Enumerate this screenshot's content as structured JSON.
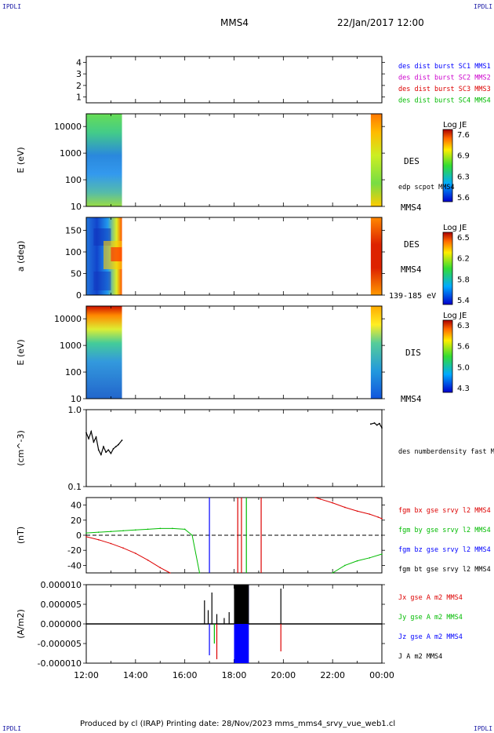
{
  "header": {
    "corner_label": "IPDLI",
    "spacecraft": "MMS4",
    "date": "22/Jan/2017 12:00"
  },
  "footer": {
    "text": "Produced by cl (IRAP)   Printing date: 28/Nov/2023   mms_mms4_srvy_vue_web1.cl"
  },
  "colors": {
    "black": "#000000",
    "blue": "#0000ff",
    "magenta": "#cc00cc",
    "red": "#dd0000",
    "green": "#00bb00"
  },
  "chart_data": [
    {
      "type": "line",
      "panel": "burst",
      "yticks": [
        "1",
        "2",
        "3",
        "4"
      ],
      "ylim": [
        0.5,
        4.5
      ],
      "legend": [
        {
          "text": "des dist burst SC1 MMS1",
          "color": "#0000ff"
        },
        {
          "text": "des dist burst SC2 MMS2",
          "color": "#cc00cc"
        },
        {
          "text": "des dist burst SC3 MMS3",
          "color": "#dd0000"
        },
        {
          "text": "des dist burst SC4 MMS4",
          "color": "#00bb00"
        }
      ]
    },
    {
      "type": "heatmap",
      "panel": "des-energy",
      "ylabel": "E (eV)",
      "yscale": "log",
      "ylim": [
        10,
        30000
      ],
      "yticks": [
        "10",
        "100",
        "1000",
        "10000"
      ],
      "data_intervals_hours": [
        [
          0.0,
          1.45
        ],
        [
          11.55,
          12.0
        ]
      ],
      "right_labels": [
        "DES",
        "edp scpot MMS4",
        "MMS4"
      ],
      "colorbar": {
        "title": "Log JE",
        "ticks": [
          "7.6",
          "6.9",
          "6.3",
          "5.6"
        ],
        "range": [
          5.6,
          7.6
        ]
      }
    },
    {
      "type": "heatmap",
      "panel": "des-pitch",
      "ylabel": "a (deg)",
      "ylim": [
        0,
        180
      ],
      "yticks": [
        "0",
        "50",
        "100",
        "150"
      ],
      "data_intervals_hours": [
        [
          0.0,
          1.45
        ],
        [
          11.55,
          12.0
        ]
      ],
      "right_labels": [
        "DES",
        "MMS4",
        "139-185 eV"
      ],
      "colorbar": {
        "title": "Log JE",
        "ticks": [
          "6.5",
          "6.2",
          "5.8",
          "5.4"
        ],
        "range": [
          5.4,
          6.5
        ]
      }
    },
    {
      "type": "heatmap",
      "panel": "dis-energy",
      "ylabel": "E (eV)",
      "yscale": "log",
      "ylim": [
        10,
        30000
      ],
      "yticks": [
        "10",
        "100",
        "1000",
        "10000"
      ],
      "data_intervals_hours": [
        [
          0.0,
          1.45
        ],
        [
          11.55,
          12.0
        ]
      ],
      "right_labels": [
        "DIS",
        "MMS4"
      ],
      "colorbar": {
        "title": "Log JE",
        "ticks": [
          "6.3",
          "5.6",
          "5.0",
          "4.3"
        ],
        "range": [
          4.3,
          6.3
        ]
      }
    },
    {
      "type": "line",
      "panel": "density",
      "ylabel": "(cm^-3)",
      "yscale": "log",
      "ylim": [
        0.1,
        1.0
      ],
      "yticks": [
        "0.1",
        "1.0"
      ],
      "series": [
        {
          "name": "des numberdensity fast M",
          "color": "#000000",
          "x": [
            0.0,
            0.1,
            0.2,
            0.3,
            0.4,
            0.5,
            0.6,
            0.7,
            0.8,
            0.9,
            1.0,
            1.1,
            1.2,
            1.3,
            1.45,
            11.55,
            11.7,
            11.8,
            11.9,
            12.0
          ],
          "y": [
            0.5,
            0.42,
            0.52,
            0.38,
            0.44,
            0.3,
            0.26,
            0.33,
            0.28,
            0.3,
            0.27,
            0.31,
            0.33,
            0.35,
            0.4,
            0.65,
            0.67,
            0.63,
            0.66,
            0.58
          ]
        }
      ]
    },
    {
      "type": "line",
      "panel": "B-field",
      "ylabel": "(nT)",
      "ylim": [
        -50,
        50
      ],
      "yticks": [
        "-40",
        "-20",
        "0",
        "20",
        "40"
      ],
      "series": [
        {
          "name": "fgm bx gse srvy l2 MMS4",
          "color": "#dd0000",
          "x": [
            0.0,
            0.5,
            1.0,
            1.5,
            2.0,
            2.5,
            3.0,
            3.4,
            9.3,
            9.5,
            10.0,
            10.5,
            11.0,
            11.5,
            11.85,
            12.0
          ],
          "y": [
            -2,
            -6,
            -11,
            -17,
            -24,
            -33,
            -43,
            -52,
            52,
            48,
            43,
            37,
            32,
            28,
            24,
            22
          ]
        },
        {
          "name": "fgm by gse srvy l2 MMS4",
          "color": "#00bb00",
          "x": [
            0.0,
            0.5,
            1.0,
            1.5,
            2.0,
            2.5,
            3.0,
            3.5,
            4.0,
            4.3,
            4.6,
            10.0,
            10.5,
            11.0,
            11.5,
            12.0
          ],
          "y": [
            3,
            4,
            5,
            6,
            7,
            8,
            9,
            9,
            8,
            0,
            -52,
            -52,
            -40,
            -34,
            -30,
            -25
          ]
        },
        {
          "name": "fgm bz gse srvy l2 MMS4",
          "color": "#0000ff",
          "x": [],
          "y": []
        },
        {
          "name": "fgm bt gse srvy l2 MMS4",
          "color": "#000000",
          "x": [],
          "y": []
        }
      ]
    },
    {
      "type": "line",
      "panel": "current",
      "ylabel": "(A/m2)",
      "ylim": [
        -1e-05,
        1e-05
      ],
      "yticks": [
        "-0.000010",
        "-0.000005",
        "0.000000",
        "0.000005",
        "0.000010"
      ],
      "xlabels": [
        "12:00",
        "14:00",
        "16:00",
        "18:00",
        "20:00",
        "22:00",
        "00:00"
      ],
      "series": [
        {
          "name": "Jx gse A m2 MMS4",
          "color": "#dd0000"
        },
        {
          "name": "Jy gse A m2 MMS4",
          "color": "#00bb00"
        },
        {
          "name": "Jz gse A m2 MMS4",
          "color": "#0000ff"
        },
        {
          "name": "J A m2 MMS4",
          "color": "#000000"
        }
      ]
    }
  ]
}
